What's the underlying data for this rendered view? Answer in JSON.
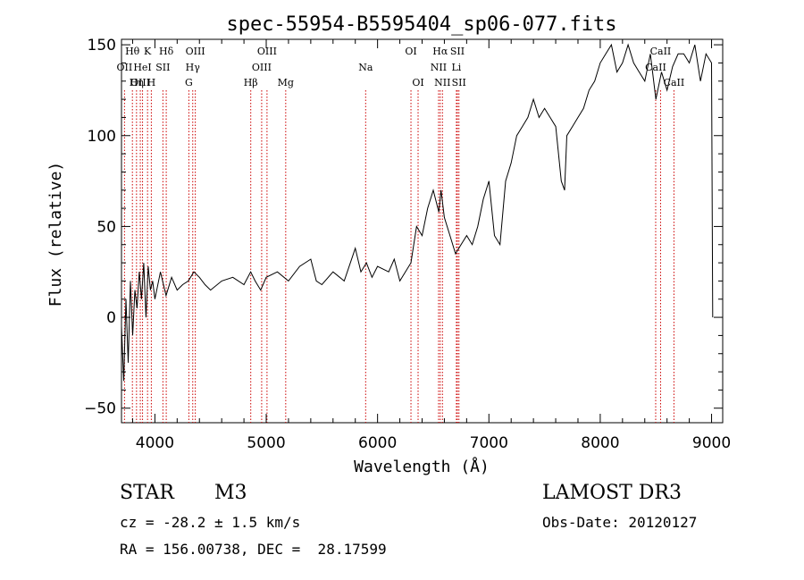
{
  "chart_data": {
    "type": "line",
    "title": "spec-55954-B5595404_sp06-077.fits",
    "xlabel": "Wavelength (Å)",
    "ylabel": "Flux (relative)",
    "xlim": [
      3700,
      9100
    ],
    "ylim": [
      -58,
      153
    ],
    "xticks": [
      4000,
      5000,
      6000,
      7000,
      8000,
      9000
    ],
    "yticks": [
      -50,
      0,
      50,
      100,
      150
    ],
    "grid": false,
    "series": [
      {
        "name": "spectrum",
        "x": [
          3700,
          3720,
          3740,
          3760,
          3780,
          3800,
          3820,
          3840,
          3860,
          3880,
          3900,
          3920,
          3940,
          3960,
          3980,
          4000,
          4050,
          4100,
          4150,
          4200,
          4250,
          4300,
          4350,
          4400,
          4450,
          4500,
          4600,
          4700,
          4800,
          4860,
          4900,
          4950,
          5000,
          5100,
          5200,
          5300,
          5400,
          5450,
          5500,
          5600,
          5700,
          5800,
          5850,
          5900,
          5950,
          6000,
          6100,
          6150,
          6200,
          6250,
          6300,
          6350,
          6400,
          6450,
          6500,
          6550,
          6570,
          6600,
          6650,
          6700,
          6750,
          6800,
          6850,
          6900,
          6950,
          7000,
          7050,
          7100,
          7150,
          7200,
          7250,
          7300,
          7350,
          7400,
          7450,
          7500,
          7550,
          7600,
          7650,
          7680,
          7700,
          7750,
          7800,
          7850,
          7900,
          7950,
          8000,
          8050,
          8100,
          8150,
          8200,
          8250,
          8300,
          8350,
          8400,
          8450,
          8500,
          8550,
          8600,
          8650,
          8700,
          8750,
          8800,
          8850,
          8900,
          8950,
          9000,
          9010
        ],
        "y": [
          -5,
          -35,
          10,
          -25,
          20,
          -10,
          15,
          5,
          25,
          10,
          30,
          0,
          28,
          15,
          20,
          10,
          25,
          12,
          22,
          15,
          18,
          20,
          25,
          22,
          18,
          15,
          20,
          22,
          18,
          25,
          20,
          15,
          22,
          25,
          20,
          28,
          32,
          20,
          18,
          25,
          20,
          38,
          25,
          30,
          22,
          28,
          25,
          32,
          20,
          25,
          30,
          50,
          45,
          60,
          70,
          58,
          70,
          55,
          45,
          35,
          40,
          45,
          40,
          50,
          65,
          75,
          45,
          40,
          75,
          85,
          100,
          105,
          110,
          120,
          110,
          115,
          110,
          105,
          75,
          70,
          100,
          105,
          110,
          115,
          125,
          130,
          140,
          145,
          150,
          135,
          140,
          150,
          140,
          135,
          130,
          145,
          120,
          135,
          125,
          138,
          145,
          145,
          140,
          150,
          130,
          145,
          140,
          0
        ]
      }
    ],
    "line_markers": [
      {
        "label": "Hθ",
        "wave": 3798,
        "row": 1
      },
      {
        "label": "K",
        "wave": 3934,
        "row": 1
      },
      {
        "label": "Hδ",
        "wave": 4102,
        "row": 1
      },
      {
        "label": "OIII",
        "wave": 4363,
        "row": 1
      },
      {
        "label": "OIII",
        "wave": 5007,
        "row": 1
      },
      {
        "label": "OI",
        "wave": 6300,
        "row": 1
      },
      {
        "label": "Hα",
        "wave": 6563,
        "row": 1
      },
      {
        "label": "SII",
        "wave": 6717,
        "row": 1
      },
      {
        "label": "CaII",
        "wave": 8542,
        "row": 1
      },
      {
        "label": "OII",
        "wave": 3727,
        "row": 2
      },
      {
        "label": "HeI",
        "wave": 3889,
        "row": 2
      },
      {
        "label": "SII",
        "wave": 4072,
        "row": 2
      },
      {
        "label": "Hγ",
        "wave": 4340,
        "row": 2
      },
      {
        "label": "OIII",
        "wave": 4959,
        "row": 2
      },
      {
        "label": "Na",
        "wave": 5893,
        "row": 2
      },
      {
        "label": "NII",
        "wave": 6548,
        "row": 2
      },
      {
        "label": "Li",
        "wave": 6708,
        "row": 2
      },
      {
        "label": "CaII",
        "wave": 8498,
        "row": 2
      },
      {
        "label": "OIII",
        "wave": 3869,
        "row": 3
      },
      {
        "label": "Hη",
        "wave": 3835,
        "row": 3
      },
      {
        "label": "H",
        "wave": 3968,
        "row": 3
      },
      {
        "label": "G",
        "wave": 4305,
        "row": 3
      },
      {
        "label": "Hβ",
        "wave": 4861,
        "row": 3
      },
      {
        "label": "Mg",
        "wave": 5175,
        "row": 3
      },
      {
        "label": "OI",
        "wave": 6364,
        "row": 3
      },
      {
        "label": "NII",
        "wave": 6583,
        "row": 3
      },
      {
        "label": "SII",
        "wave": 6731,
        "row": 3
      },
      {
        "label": "CaII",
        "wave": 8662,
        "row": 3
      }
    ]
  },
  "info": {
    "object_type": "STAR",
    "subclass": "M3",
    "survey": "LAMOST DR3",
    "redshift": "cz = -28.2 ± 1.5 km/s",
    "obs_date": "Obs-Date: 20120127",
    "coords": "RA = 156.00738, DEC =  28.17599"
  },
  "colors": {
    "spectrum": "#000000",
    "marker_line": "#cc0000",
    "text": "#000000"
  }
}
